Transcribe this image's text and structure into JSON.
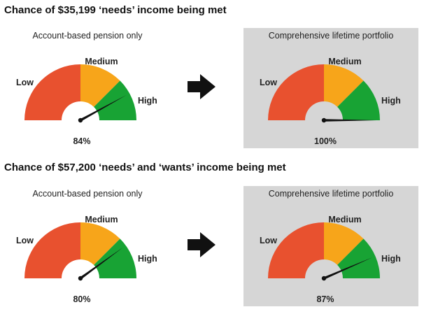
{
  "colors": {
    "low": "#e8512f",
    "medium": "#f7a51a",
    "high": "#18a334",
    "needle": "#111111",
    "panel_highlight": "#d6d6d6"
  },
  "zone_labels": {
    "low": "Low",
    "medium": "Medium",
    "high": "High"
  },
  "sections": [
    {
      "title": "Chance of $35,199 ‘needs’ income being met",
      "gauges": [
        {
          "title": "Account-based pension only",
          "value_label": "84%"
        },
        {
          "title": "Comprehensive lifetime portfolio",
          "value_label": "100%"
        }
      ]
    },
    {
      "title": "Chance of $57,200 ‘needs’ and ‘wants’ income being met",
      "gauges": [
        {
          "title": "Account-based pension only",
          "value_label": "80%"
        },
        {
          "title": "Comprehensive lifetime portfolio",
          "value_label": "87%"
        }
      ]
    }
  ],
  "chart_data": [
    {
      "type": "gauge",
      "title": "Account-based pension only",
      "value": 84,
      "range": [
        0,
        100
      ],
      "zones": [
        {
          "name": "Low",
          "from": 0,
          "to": 50
        },
        {
          "name": "Medium",
          "from": 50,
          "to": 75
        },
        {
          "name": "High",
          "from": 75,
          "to": 100
        }
      ]
    },
    {
      "type": "gauge",
      "title": "Comprehensive lifetime portfolio",
      "value": 100,
      "range": [
        0,
        100
      ],
      "zones": [
        {
          "name": "Low",
          "from": 0,
          "to": 50
        },
        {
          "name": "Medium",
          "from": 50,
          "to": 75
        },
        {
          "name": "High",
          "from": 75,
          "to": 100
        }
      ]
    },
    {
      "type": "gauge",
      "title": "Account-based pension only",
      "value": 80,
      "range": [
        0,
        100
      ],
      "zones": [
        {
          "name": "Low",
          "from": 0,
          "to": 50
        },
        {
          "name": "Medium",
          "from": 50,
          "to": 75
        },
        {
          "name": "High",
          "from": 75,
          "to": 100
        }
      ]
    },
    {
      "type": "gauge",
      "title": "Comprehensive lifetime portfolio",
      "value": 87,
      "range": [
        0,
        100
      ],
      "zones": [
        {
          "name": "Low",
          "from": 0,
          "to": 50
        },
        {
          "name": "Medium",
          "from": 50,
          "to": 75
        },
        {
          "name": "High",
          "from": 75,
          "to": 100
        }
      ]
    }
  ]
}
